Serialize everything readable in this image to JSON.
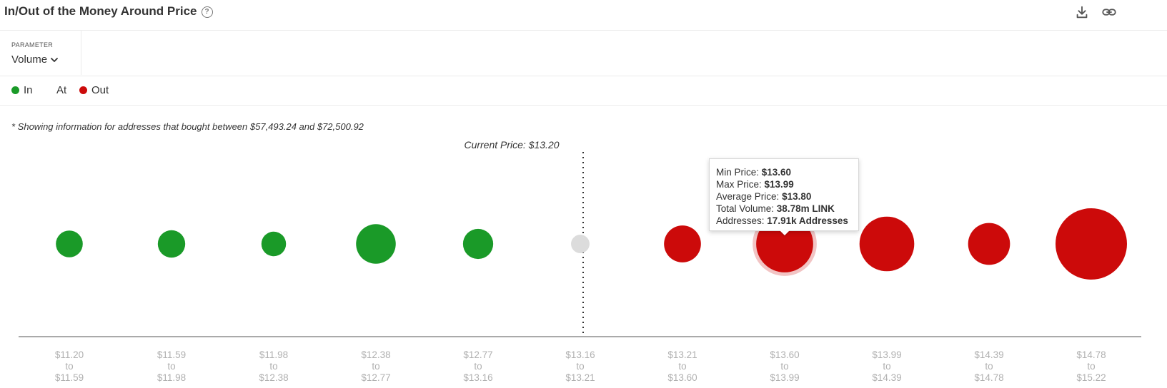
{
  "header": {
    "title": "In/Out of the Money Around Price",
    "help_icon": "question-circle-icon",
    "download_icon": "download-icon",
    "link_icon": "link-icon"
  },
  "parameter": {
    "label": "PARAMETER",
    "selected": "Volume"
  },
  "legend": {
    "items": [
      {
        "label": "In",
        "color": "#1a9a28"
      },
      {
        "label": "At",
        "color": ""
      },
      {
        "label": "Out",
        "color": "#cc0a0a"
      }
    ]
  },
  "note": "* Showing information for addresses that bought between $57,493.24 and $72,500.92",
  "tooltip": {
    "min_price_label": "Min Price: ",
    "min_price": "$13.60",
    "max_price_label": "Max Price: ",
    "max_price": "$13.99",
    "avg_price_label": "Average Price: ",
    "avg_price": "$13.80",
    "volume_label": "Total Volume: ",
    "volume": "38.78m LINK",
    "addresses_label": "Addresses: ",
    "addresses": "17.91k Addresses"
  },
  "chart_data": {
    "type": "bubble",
    "current_price_label": "Current Price: $13.20",
    "current_price": 13.2,
    "connector_word": "to",
    "colors": {
      "in": "#1a9a28",
      "at": "#dcdcdc",
      "out": "#cc0a0a"
    },
    "categories": [
      {
        "from": "$11.20",
        "to": "$11.59",
        "status": "in",
        "relative_volume": 0.2
      },
      {
        "from": "$11.59",
        "to": "$11.98",
        "status": "in",
        "relative_volume": 0.21
      },
      {
        "from": "$11.98",
        "to": "$12.38",
        "status": "in",
        "relative_volume": 0.16
      },
      {
        "from": "$12.38",
        "to": "$12.77",
        "status": "in",
        "relative_volume": 0.43
      },
      {
        "from": "$12.77",
        "to": "$13.16",
        "status": "in",
        "relative_volume": 0.26
      },
      {
        "from": "$13.16",
        "to": "$13.21",
        "status": "at",
        "relative_volume": 0.05
      },
      {
        "from": "$13.21",
        "to": "$13.60",
        "status": "out",
        "relative_volume": 0.38
      },
      {
        "from": "$13.60",
        "to": "$13.99",
        "status": "out",
        "relative_volume": 0.74
      },
      {
        "from": "$13.99",
        "to": "$14.39",
        "status": "out",
        "relative_volume": 0.7
      },
      {
        "from": "$14.39",
        "to": "$14.78",
        "status": "out",
        "relative_volume": 0.47
      },
      {
        "from": "$14.78",
        "to": "$15.22",
        "status": "out",
        "relative_volume": 1.0
      }
    ],
    "highlighted_index": 7
  }
}
